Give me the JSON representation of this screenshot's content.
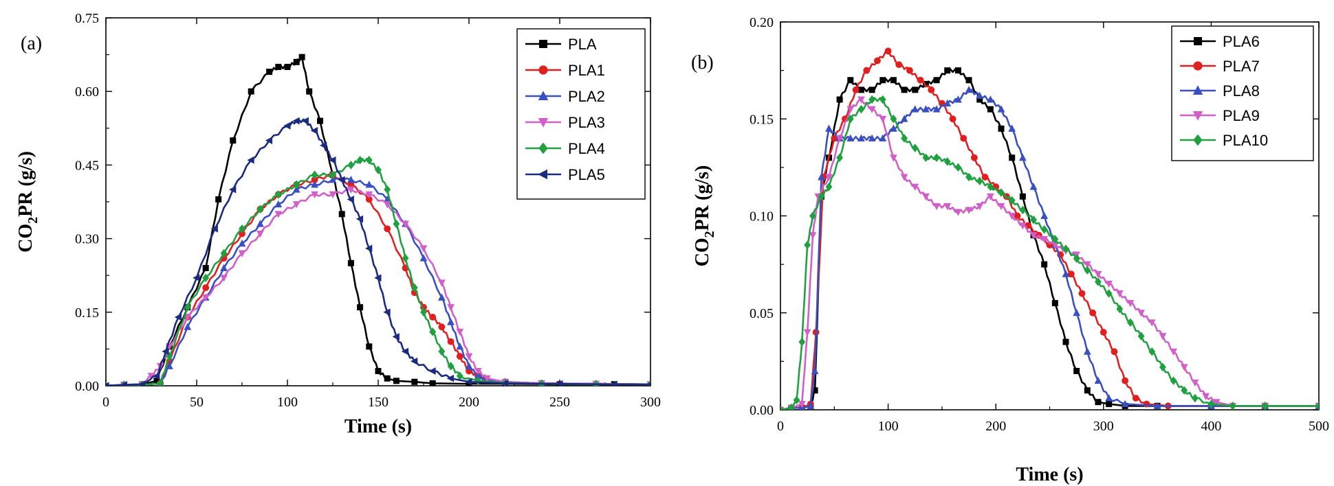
{
  "chart_data": [
    {
      "type": "line",
      "panel_label": "(a)",
      "xlabel": "Time (s)",
      "ylabel_main": "CO",
      "ylabel_sub": "2",
      "ylabel_rest": "PR (g/s)",
      "xlim": [
        0,
        300
      ],
      "ylim": [
        0,
        0.75
      ],
      "xticks": [
        0,
        50,
        100,
        150,
        200,
        250,
        300
      ],
      "yticks": [
        0.0,
        0.15,
        0.3,
        0.45,
        0.6,
        0.75
      ],
      "xtick_labels": [
        "0",
        "50",
        "100",
        "150",
        "200",
        "250",
        "300"
      ],
      "ytick_labels": [
        "0.00",
        "0.15",
        "0.30",
        "0.45",
        "0.60",
        "0.75"
      ],
      "legend_position": "top-right",
      "series": [
        {
          "name": "PLA",
          "color": "#000000",
          "marker": "square",
          "x": [
            0,
            10,
            20,
            28,
            35,
            45,
            55,
            62,
            70,
            80,
            90,
            95,
            100,
            105,
            108,
            112,
            118,
            125,
            130,
            135,
            140,
            145,
            150,
            155,
            160,
            170,
            180,
            200,
            220,
            250,
            280,
            300
          ],
          "y": [
            0,
            0.002,
            0.003,
            0.01,
            0.08,
            0.16,
            0.24,
            0.38,
            0.5,
            0.6,
            0.64,
            0.65,
            0.65,
            0.66,
            0.67,
            0.6,
            0.54,
            0.43,
            0.35,
            0.25,
            0.16,
            0.08,
            0.03,
            0.015,
            0.01,
            0.008,
            0.005,
            0.004,
            0.004,
            0.003,
            0.003,
            0.003
          ]
        },
        {
          "name": "PLA1",
          "color": "#e02020",
          "marker": "circle",
          "x": [
            0,
            10,
            20,
            30,
            35,
            45,
            55,
            65,
            75,
            85,
            95,
            105,
            115,
            125,
            135,
            145,
            155,
            165,
            170,
            175,
            180,
            185,
            190,
            195,
            200,
            205,
            210,
            220,
            240,
            270,
            300
          ],
          "y": [
            0,
            0.002,
            0.002,
            0.005,
            0.05,
            0.14,
            0.2,
            0.26,
            0.31,
            0.36,
            0.39,
            0.41,
            0.42,
            0.43,
            0.41,
            0.38,
            0.32,
            0.24,
            0.19,
            0.16,
            0.14,
            0.12,
            0.09,
            0.06,
            0.03,
            0.02,
            0.012,
            0.008,
            0.005,
            0.004,
            0.003
          ]
        },
        {
          "name": "PLA2",
          "color": "#3a4fc0",
          "marker": "triangle-up",
          "x": [
            0,
            10,
            20,
            30,
            35,
            45,
            55,
            65,
            75,
            85,
            95,
            105,
            115,
            125,
            135,
            145,
            155,
            165,
            175,
            185,
            190,
            195,
            200,
            205,
            210,
            220,
            240,
            270,
            300
          ],
          "y": [
            0,
            0.002,
            0.002,
            0.005,
            0.04,
            0.12,
            0.18,
            0.24,
            0.29,
            0.33,
            0.37,
            0.4,
            0.41,
            0.42,
            0.42,
            0.41,
            0.38,
            0.33,
            0.26,
            0.18,
            0.13,
            0.08,
            0.04,
            0.02,
            0.012,
            0.008,
            0.005,
            0.004,
            0.003
          ]
        },
        {
          "name": "PLA3",
          "color": "#d060c8",
          "marker": "triangle-down",
          "x": [
            0,
            10,
            20,
            25,
            30,
            35,
            45,
            55,
            65,
            75,
            85,
            95,
            105,
            115,
            125,
            135,
            145,
            155,
            165,
            175,
            185,
            190,
            195,
            200,
            205,
            210,
            220,
            240,
            270,
            300
          ],
          "y": [
            0,
            0.002,
            0.003,
            0.02,
            0.04,
            0.08,
            0.14,
            0.18,
            0.22,
            0.27,
            0.31,
            0.35,
            0.37,
            0.39,
            0.39,
            0.4,
            0.39,
            0.37,
            0.33,
            0.28,
            0.21,
            0.16,
            0.11,
            0.06,
            0.03,
            0.015,
            0.008,
            0.005,
            0.004,
            0.003
          ]
        },
        {
          "name": "PLA4",
          "color": "#20a040",
          "marker": "diamond",
          "x": [
            0,
            10,
            20,
            30,
            35,
            45,
            55,
            65,
            75,
            85,
            95,
            105,
            115,
            125,
            135,
            140,
            145,
            150,
            155,
            160,
            165,
            170,
            175,
            180,
            185,
            190,
            195,
            205,
            220,
            240,
            270,
            300
          ],
          "y": [
            0,
            0.002,
            0.002,
            0.005,
            0.06,
            0.16,
            0.22,
            0.27,
            0.32,
            0.36,
            0.39,
            0.41,
            0.43,
            0.43,
            0.45,
            0.46,
            0.46,
            0.44,
            0.4,
            0.33,
            0.26,
            0.2,
            0.15,
            0.11,
            0.07,
            0.04,
            0.02,
            0.01,
            0.006,
            0.004,
            0.003,
            0.003
          ]
        },
        {
          "name": "PLA5",
          "color": "#1c2a80",
          "marker": "triangle-left",
          "x": [
            0,
            10,
            20,
            28,
            33,
            40,
            50,
            60,
            70,
            80,
            90,
            100,
            105,
            110,
            115,
            120,
            125,
            130,
            135,
            140,
            145,
            150,
            155,
            160,
            165,
            170,
            180,
            190,
            200,
            220,
            250,
            280,
            300
          ],
          "y": [
            0,
            0.002,
            0.003,
            0.02,
            0.07,
            0.14,
            0.22,
            0.32,
            0.4,
            0.46,
            0.5,
            0.53,
            0.54,
            0.54,
            0.52,
            0.49,
            0.46,
            0.42,
            0.38,
            0.34,
            0.28,
            0.22,
            0.15,
            0.1,
            0.07,
            0.05,
            0.03,
            0.015,
            0.008,
            0.005,
            0.004,
            0.003,
            0.003
          ]
        }
      ]
    },
    {
      "type": "line",
      "panel_label": "(b)",
      "xlabel": "Time (s)",
      "ylabel_main": "CO",
      "ylabel_sub": "2",
      "ylabel_rest": "PR (g/s)",
      "xlim": [
        0,
        500
      ],
      "ylim": [
        0,
        0.2
      ],
      "xticks": [
        0,
        100,
        200,
        300,
        400,
        500
      ],
      "yticks": [
        0.0,
        0.05,
        0.1,
        0.15,
        0.2
      ],
      "xtick_labels": [
        "0",
        "100",
        "200",
        "300",
        "400",
        "500"
      ],
      "ytick_labels": [
        "0.00",
        "0.05",
        "0.10",
        "0.15",
        "0.20"
      ],
      "legend_position": "top-right",
      "series": [
        {
          "name": "PLA6",
          "color": "#000000",
          "marker": "square",
          "x": [
            0,
            10,
            20,
            28,
            32,
            38,
            45,
            55,
            65,
            75,
            85,
            95,
            105,
            115,
            125,
            135,
            145,
            155,
            165,
            175,
            185,
            195,
            205,
            215,
            225,
            235,
            245,
            255,
            265,
            275,
            285,
            295,
            305,
            320,
            350,
            400,
            450,
            500
          ],
          "y": [
            0,
            0.001,
            0.001,
            0.002,
            0.01,
            0.11,
            0.13,
            0.16,
            0.17,
            0.165,
            0.165,
            0.17,
            0.17,
            0.165,
            0.165,
            0.168,
            0.17,
            0.175,
            0.175,
            0.17,
            0.16,
            0.155,
            0.145,
            0.13,
            0.11,
            0.09,
            0.075,
            0.055,
            0.035,
            0.02,
            0.01,
            0.004,
            0.003,
            0.002,
            0.002,
            0.002,
            0.002,
            0.002
          ]
        },
        {
          "name": "PLA7",
          "color": "#e02020",
          "marker": "circle",
          "x": [
            0,
            10,
            20,
            28,
            33,
            40,
            50,
            60,
            70,
            80,
            90,
            100,
            110,
            120,
            130,
            140,
            150,
            160,
            170,
            180,
            190,
            200,
            210,
            220,
            230,
            240,
            250,
            260,
            270,
            280,
            290,
            300,
            310,
            320,
            330,
            340,
            360,
            400,
            450,
            500
          ],
          "y": [
            0,
            0.001,
            0.001,
            0.003,
            0.04,
            0.12,
            0.14,
            0.15,
            0.165,
            0.175,
            0.18,
            0.185,
            0.178,
            0.175,
            0.17,
            0.165,
            0.158,
            0.15,
            0.14,
            0.13,
            0.12,
            0.115,
            0.11,
            0.1,
            0.095,
            0.09,
            0.085,
            0.08,
            0.07,
            0.06,
            0.05,
            0.04,
            0.03,
            0.015,
            0.006,
            0.003,
            0.002,
            0.002,
            0.002,
            0.002
          ]
        },
        {
          "name": "PLA8",
          "color": "#3a4fc0",
          "marker": "triangle-up",
          "x": [
            0,
            10,
            20,
            28,
            32,
            38,
            45,
            55,
            65,
            75,
            85,
            95,
            105,
            115,
            125,
            135,
            145,
            155,
            165,
            175,
            185,
            195,
            205,
            215,
            225,
            235,
            245,
            255,
            265,
            275,
            285,
            295,
            305,
            320,
            350,
            400,
            450,
            500
          ],
          "y": [
            0,
            0.001,
            0.001,
            0.002,
            0.02,
            0.12,
            0.145,
            0.14,
            0.14,
            0.14,
            0.14,
            0.14,
            0.145,
            0.15,
            0.155,
            0.155,
            0.155,
            0.158,
            0.16,
            0.165,
            0.162,
            0.16,
            0.155,
            0.145,
            0.13,
            0.115,
            0.1,
            0.085,
            0.07,
            0.05,
            0.03,
            0.015,
            0.006,
            0.003,
            0.002,
            0.002,
            0.002,
            0.002
          ]
        },
        {
          "name": "PLA9",
          "color": "#d060c8",
          "marker": "triangle-down",
          "x": [
            0,
            10,
            20,
            25,
            30,
            35,
            45,
            55,
            65,
            75,
            85,
            95,
            105,
            115,
            125,
            135,
            145,
            155,
            165,
            175,
            185,
            195,
            205,
            215,
            225,
            235,
            245,
            255,
            265,
            275,
            285,
            295,
            305,
            315,
            325,
            335,
            345,
            355,
            365,
            375,
            385,
            395,
            405,
            420,
            450,
            500
          ],
          "y": [
            0,
            0.001,
            0.003,
            0.04,
            0.09,
            0.11,
            0.12,
            0.14,
            0.155,
            0.16,
            0.155,
            0.15,
            0.13,
            0.12,
            0.115,
            0.11,
            0.105,
            0.105,
            0.102,
            0.103,
            0.105,
            0.11,
            0.105,
            0.1,
            0.095,
            0.09,
            0.088,
            0.085,
            0.082,
            0.08,
            0.075,
            0.07,
            0.065,
            0.06,
            0.055,
            0.05,
            0.045,
            0.038,
            0.03,
            0.022,
            0.014,
            0.007,
            0.004,
            0.002,
            0.002,
            0.002
          ]
        },
        {
          "name": "PLA10",
          "color": "#20a040",
          "marker": "diamond",
          "x": [
            0,
            10,
            15,
            20,
            25,
            30,
            38,
            45,
            55,
            65,
            75,
            85,
            95,
            105,
            115,
            125,
            135,
            145,
            155,
            165,
            175,
            185,
            195,
            205,
            215,
            225,
            235,
            245,
            255,
            265,
            275,
            285,
            295,
            305,
            315,
            325,
            335,
            345,
            355,
            365,
            375,
            385,
            400,
            420,
            450,
            500
          ],
          "y": [
            0,
            0.001,
            0.005,
            0.035,
            0.085,
            0.1,
            0.11,
            0.115,
            0.13,
            0.15,
            0.155,
            0.16,
            0.16,
            0.15,
            0.14,
            0.135,
            0.13,
            0.13,
            0.128,
            0.125,
            0.12,
            0.118,
            0.115,
            0.112,
            0.108,
            0.103,
            0.098,
            0.093,
            0.088,
            0.083,
            0.078,
            0.072,
            0.066,
            0.06,
            0.052,
            0.045,
            0.038,
            0.03,
            0.022,
            0.015,
            0.01,
            0.006,
            0.003,
            0.002,
            0.002,
            0.002
          ]
        }
      ]
    }
  ]
}
